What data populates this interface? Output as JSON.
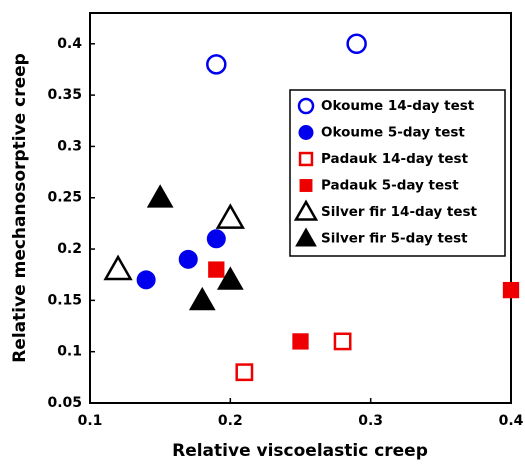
{
  "chart_data": {
    "type": "scatter",
    "x_label": "Relative viscoelastic creep",
    "y_label": "Relative mechanosorptive creep",
    "xlim": [
      0.1,
      0.4
    ],
    "xticks": [
      0.1,
      0.2,
      0.3,
      0.4
    ],
    "ylim": [
      0.05,
      0.43
    ],
    "yticks": [
      0.05,
      0.1,
      0.15,
      0.2,
      0.25,
      0.3,
      0.35,
      0.4
    ],
    "legend": "upper right",
    "series": [
      {
        "name": "Okoume 14-day test",
        "color": "#0000ee",
        "marker": "circle",
        "filled": false,
        "x": [
          0.19,
          0.29
        ],
        "values": [
          0.38,
          0.4
        ]
      },
      {
        "name": "Okoume 5-day test",
        "color": "#0000ee",
        "marker": "circle",
        "filled": true,
        "x": [
          0.14,
          0.17,
          0.19
        ],
        "values": [
          0.17,
          0.19,
          0.21
        ]
      },
      {
        "name": "Padauk 14-day test",
        "color": "#ee0000",
        "marker": "square",
        "filled": false,
        "x": [
          0.21,
          0.28
        ],
        "values": [
          0.08,
          0.11
        ]
      },
      {
        "name": "Padauk 5-day test",
        "color": "#ee0000",
        "marker": "square",
        "filled": true,
        "x": [
          0.19,
          0.25,
          0.4
        ],
        "values": [
          0.18,
          0.11,
          0.16
        ]
      },
      {
        "name": "Silver fir 14-day test",
        "color": "#000000",
        "marker": "triangle",
        "filled": false,
        "x": [
          0.12,
          0.2
        ],
        "values": [
          0.18,
          0.23
        ]
      },
      {
        "name": "Silver fir 5-day test",
        "color": "#000000",
        "marker": "triangle",
        "filled": true,
        "x": [
          0.15,
          0.18,
          0.2
        ],
        "values": [
          0.25,
          0.15,
          0.17
        ]
      }
    ]
  }
}
